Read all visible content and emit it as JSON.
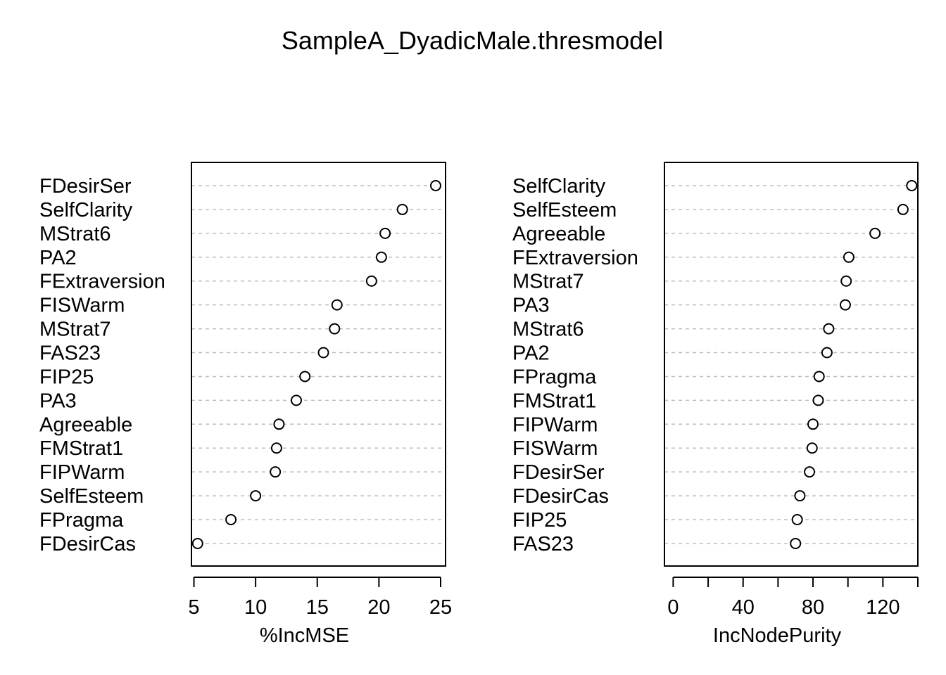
{
  "title": "SampleA_DyadicMale.thresmodel",
  "chart_data": [
    {
      "type": "scatter",
      "xlabel": "%IncMSE",
      "xlim": [
        4.8,
        25.4
      ],
      "xticks": [
        5,
        10,
        15,
        20,
        25
      ],
      "categories": [
        "FDesirSer",
        "SelfClarity",
        "MStrat6",
        "PA2",
        "FExtraversion",
        "FISWarm",
        "MStrat7",
        "FAS23",
        "FIP25",
        "PA3",
        "Agreeable",
        "FMStrat1",
        "FIPWarm",
        "SelfEsteem",
        "FPragma",
        "FDesirCas"
      ],
      "values": [
        24.6,
        21.9,
        20.5,
        20.2,
        19.4,
        16.6,
        16.4,
        15.5,
        14.0,
        13.3,
        11.9,
        11.7,
        11.6,
        10.0,
        8.0,
        5.3
      ],
      "grid": "horizontal dashed"
    },
    {
      "type": "scatter",
      "xlabel": "IncNodePurity",
      "xlim": [
        -5,
        140
      ],
      "xticks": [
        0,
        40,
        80,
        120
      ],
      "minor_ticks": [
        20,
        60,
        100,
        140
      ],
      "categories": [
        "SelfClarity",
        "SelfEsteem",
        "Agreeable",
        "FExtraversion",
        "MStrat7",
        "PA3",
        "MStrat6",
        "PA2",
        "FPragma",
        "FMStrat1",
        "FIPWarm",
        "FISWarm",
        "FDesirSer",
        "FDesirCas",
        "FIP25",
        "FAS23"
      ],
      "values": [
        136.5,
        131.5,
        115.5,
        100.5,
        99.0,
        98.5,
        89.0,
        88.0,
        83.5,
        83.0,
        80.0,
        79.5,
        78.0,
        72.5,
        71.0,
        70.0
      ],
      "grid": "horizontal dashed"
    }
  ]
}
